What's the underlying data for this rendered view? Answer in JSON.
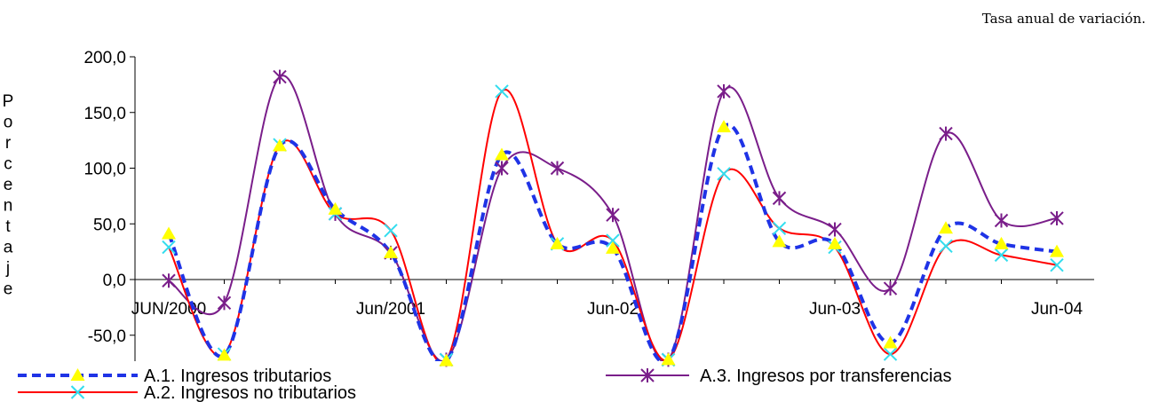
{
  "chart_data": {
    "type": "line",
    "title": "",
    "subtitle": "Tasa anual de variación.",
    "ylabel": "Porcentaje",
    "xlabel": "",
    "ylim": [
      -70,
      200
    ],
    "y_ticks": [
      -50,
      0,
      50,
      100,
      150,
      200
    ],
    "y_tick_labels": [
      "-50,0",
      "0,0",
      "50,0",
      "100,0",
      "150,0",
      "200,0"
    ],
    "x_tick_labels": [
      {
        "index": 0,
        "label": "JUN/2000"
      },
      {
        "index": 4,
        "label": "Jun/2001"
      },
      {
        "index": 8,
        "label": "Jun-02"
      },
      {
        "index": 12,
        "label": "Jun-03"
      },
      {
        "index": 16,
        "label": "Jun-04"
      }
    ],
    "grid": false,
    "legend_position": "bottom",
    "series": [
      {
        "name": "A.1. Ingresos tributarios",
        "color": "#1f33e6",
        "dash": true,
        "marker": "triangle",
        "marker_color": "#ffff00",
        "values": [
          41,
          -68,
          120,
          63,
          24,
          -73,
          112,
          32,
          28,
          -72,
          137,
          34,
          32,
          -57,
          46,
          32,
          25
        ]
      },
      {
        "name": "A.2. Ingresos no tributarios",
        "color": "#ff0000",
        "dash": false,
        "marker": "x",
        "marker_color": "#33ddee",
        "values": [
          29,
          -67,
          121,
          59,
          44,
          -72,
          169,
          32,
          35,
          -72,
          95,
          46,
          29,
          -67,
          30,
          22,
          13
        ]
      },
      {
        "name": "A.3. Ingresos por transferencias",
        "color": "#7a1e8a",
        "dash": false,
        "marker": "star",
        "marker_color": "#7a1e8a",
        "values": [
          -1,
          -21,
          182,
          59,
          24,
          -72,
          100,
          100,
          58,
          -72,
          169,
          73,
          45,
          -8,
          131,
          53,
          55
        ]
      }
    ]
  }
}
